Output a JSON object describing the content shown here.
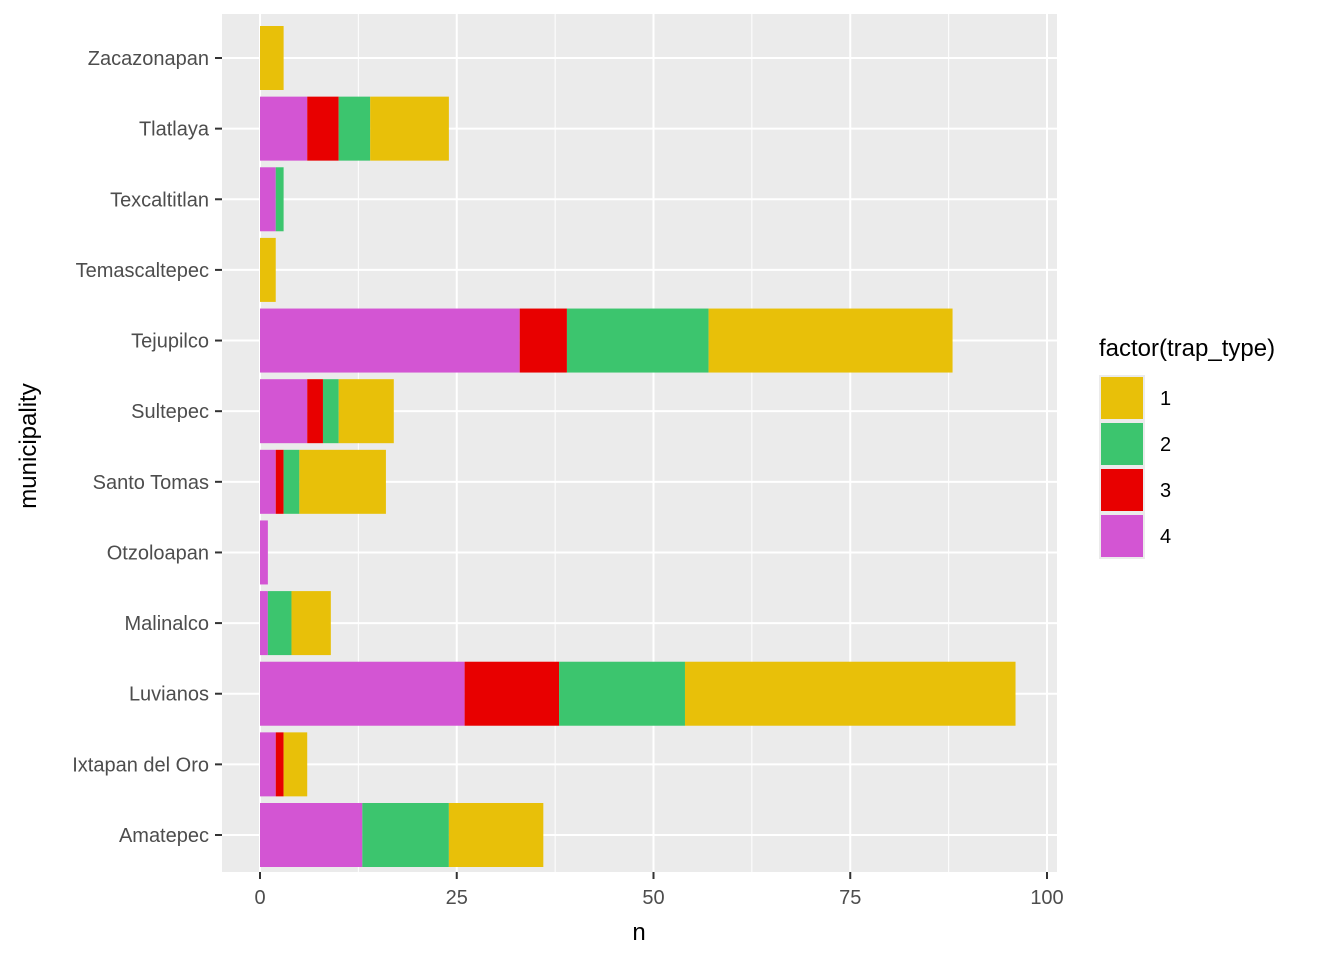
{
  "chart_data": {
    "type": "bar",
    "orientation": "horizontal",
    "stacked": true,
    "xlabel": "n",
    "ylabel": "municipality",
    "xlim": [
      0,
      100
    ],
    "x_ticks": [
      "0",
      "25",
      "50",
      "75",
      "100"
    ],
    "grid": true,
    "legend": {
      "title": "factor(trap_type)",
      "placement": "right",
      "entries": [
        "1",
        "2",
        "3",
        "4"
      ]
    },
    "categories": [
      "Amatepec",
      "Ixtapan del Oro",
      "Luvianos",
      "Malinalco",
      "Otzoloapan",
      "Santo Tomas",
      "Sultepec",
      "Tejupilco",
      "Temascaltepec",
      "Texcaltitlan",
      "Tlatlaya",
      "Zacazonapan"
    ],
    "series": [
      {
        "name": "4",
        "color": "#D355D3",
        "values": [
          13,
          2,
          26,
          1,
          1,
          2,
          6,
          33,
          0,
          2,
          6,
          0
        ]
      },
      {
        "name": "3",
        "color": "#E80000",
        "values": [
          0,
          1,
          12,
          0,
          0,
          1,
          2,
          6,
          0,
          0,
          4,
          0
        ]
      },
      {
        "name": "2",
        "color": "#3CC56E",
        "values": [
          11,
          0,
          16,
          3,
          0,
          2,
          2,
          18,
          0,
          1,
          4,
          0
        ]
      },
      {
        "name": "1",
        "color": "#E8C009",
        "values": [
          12,
          3,
          42,
          5,
          0,
          11,
          7,
          31,
          2,
          0,
          10,
          3
        ]
      }
    ]
  }
}
